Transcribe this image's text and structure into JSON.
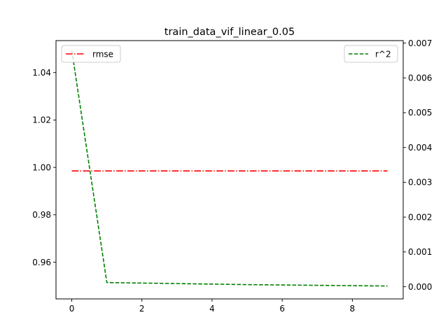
{
  "chart_data": {
    "type": "line",
    "title": "train_data_vif_linear_0.05",
    "x": [
      0,
      1,
      2,
      3,
      4,
      5,
      6,
      7,
      8,
      9
    ],
    "xlim": [
      -0.45,
      9.45
    ],
    "xticks": [
      "0",
      "2",
      "4",
      "6",
      "8"
    ],
    "left_axis": {
      "ylim": [
        0.9445,
        1.0535
      ],
      "ticks": [
        "0.96",
        "0.98",
        "1.00",
        "1.02",
        "1.04"
      ]
    },
    "right_axis": {
      "ylim": [
        -0.00035,
        0.00707
      ],
      "ticks": [
        "0.000",
        "0.001",
        "0.002",
        "0.003",
        "0.004",
        "0.005",
        "0.006",
        "0.007"
      ]
    },
    "series": [
      {
        "name": "rmse",
        "axis": "left",
        "color": "#ff0000",
        "style": "dashdot",
        "values": [
          0.9985,
          0.9985,
          0.9985,
          0.9985,
          0.9985,
          0.9985,
          0.9985,
          0.9985,
          0.9985,
          0.9985
        ]
      },
      {
        "name": "r^2",
        "axis": "right",
        "color": "#008000",
        "style": "dashed",
        "values": [
          0.00679,
          0.00012,
          0.000105,
          9e-05,
          7.5e-05,
          6e-05,
          5e-05,
          4e-05,
          3e-05,
          2e-05
        ]
      }
    ],
    "legends": [
      {
        "placement": "top-left",
        "series": "rmse"
      },
      {
        "placement": "top-right",
        "series": "r^2"
      }
    ],
    "grid": false
  }
}
